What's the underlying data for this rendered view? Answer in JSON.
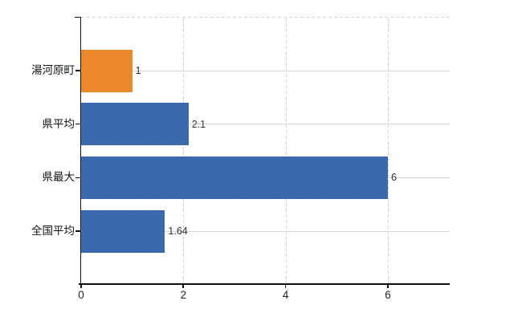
{
  "chart_data": {
    "type": "bar",
    "orientation": "horizontal",
    "title": "",
    "categories": [
      "湯河原町",
      "県平均",
      "県最大",
      "全国平均"
    ],
    "values": [
      1,
      2.1,
      6,
      1.64
    ],
    "bars": [
      {
        "category": "湯河原町",
        "value": 1,
        "value_label": "1",
        "color": "#f6922e",
        "color_dark": "#df7f28"
      },
      {
        "category": "県平均",
        "value": 2.1,
        "value_label": "2.1",
        "color": "#4472bd",
        "color_dark": "#31609f"
      },
      {
        "category": "県最大",
        "value": 6,
        "value_label": "6",
        "color": "#4472bd",
        "color_dark": "#31609f"
      },
      {
        "category": "全国平均",
        "value": 1.64,
        "value_label": "1.64",
        "color": "#4472bd",
        "color_dark": "#31609f"
      }
    ],
    "x_axis": {
      "tick_values": [
        0,
        2,
        4,
        6
      ],
      "tick_labels": [
        "0",
        "2",
        "4",
        "6"
      ],
      "range": [
        0,
        7.2
      ]
    },
    "legend": {
      "visible": false
    },
    "grid": {
      "horizontal_solid": true,
      "vertical_dashed": true,
      "top_border_dashed": true
    },
    "colors": {
      "axis": "#111111",
      "grid_solid": "#d5dad3",
      "grid_dashed": "#d2d2d2",
      "tick_text": "#222222",
      "value_text": "#333333",
      "background": "#ffffff"
    }
  }
}
